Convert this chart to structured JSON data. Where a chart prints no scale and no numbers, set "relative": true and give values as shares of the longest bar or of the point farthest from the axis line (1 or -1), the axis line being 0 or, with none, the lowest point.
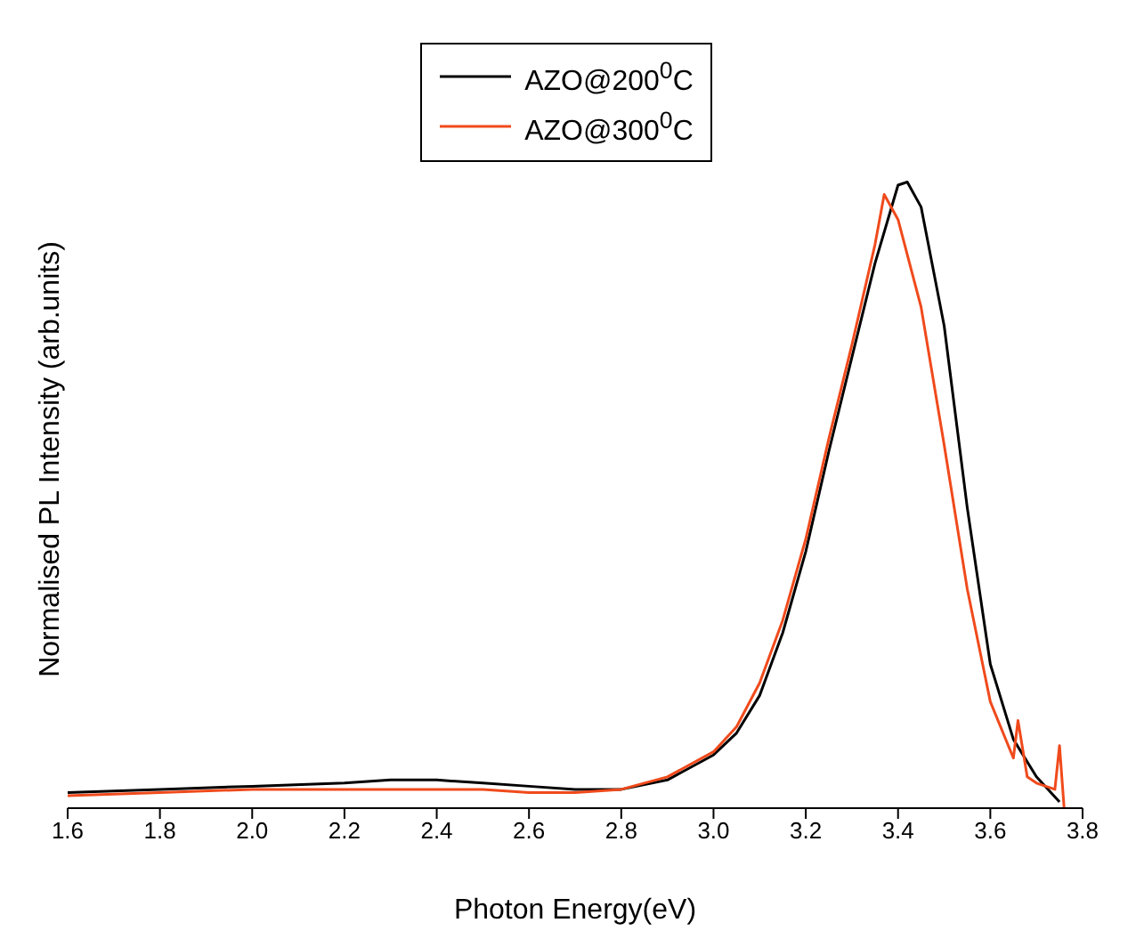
{
  "chart_data": {
    "type": "line",
    "relative": true,
    "xlabel": "Photon Energy(eV)",
    "ylabel": "Normalised PL Intensity (arb.units)",
    "xlim": [
      1.6,
      3.8
    ],
    "xticks": [
      1.6,
      1.8,
      {
        "value": 2,
        "label": "2.0"
      },
      2.2,
      2.4,
      2.6,
      2.8,
      {
        "value": 3,
        "label": "3.0"
      },
      3.2,
      3.4,
      3.6,
      3.8
    ],
    "legend": "top",
    "grid": false,
    "marker": "none",
    "line_style": "solid",
    "series": [
      {
        "name": "AZO@200$^{0}$C",
        "color": "#000000",
        "x": [
          1.6,
          1.8,
          2.0,
          2.2,
          2.3,
          2.4,
          2.5,
          2.6,
          2.7,
          2.8,
          2.9,
          3.0,
          3.05,
          3.1,
          3.15,
          3.2,
          3.25,
          3.3,
          3.35,
          3.4,
          3.42,
          3.45,
          3.5,
          3.55,
          3.6,
          3.65,
          3.7,
          3.75
        ],
        "values": [
          0.025,
          0.03,
          0.035,
          0.04,
          0.045,
          0.045,
          0.04,
          0.035,
          0.03,
          0.03,
          0.045,
          0.085,
          0.12,
          0.18,
          0.28,
          0.41,
          0.57,
          0.72,
          0.87,
          0.995,
          1,
          0.96,
          0.77,
          0.48,
          0.23,
          0.11,
          0.05,
          0.01
        ]
      },
      {
        "name": "AZO@300$^{0}$C",
        "color": "#f04a1c",
        "x": [
          1.6,
          1.8,
          2.0,
          2.2,
          2.3,
          2.4,
          2.5,
          2.6,
          2.7,
          2.8,
          2.9,
          3.0,
          3.05,
          3.1,
          3.15,
          3.2,
          3.25,
          3.3,
          3.35,
          3.37,
          3.4,
          3.45,
          3.5,
          3.55,
          3.6,
          3.65,
          3.66,
          3.68,
          3.7,
          3.74,
          3.75,
          3.76
        ],
        "values": [
          0.02,
          0.025,
          0.03,
          0.03,
          0.03,
          0.03,
          0.03,
          0.025,
          0.025,
          0.03,
          0.05,
          0.09,
          0.13,
          0.2,
          0.3,
          0.43,
          0.59,
          0.74,
          0.9,
          0.98,
          0.94,
          0.8,
          0.58,
          0.35,
          0.17,
          0.08,
          0.14,
          0.05,
          0.04,
          0.03,
          0.1,
          0
        ]
      }
    ]
  }
}
